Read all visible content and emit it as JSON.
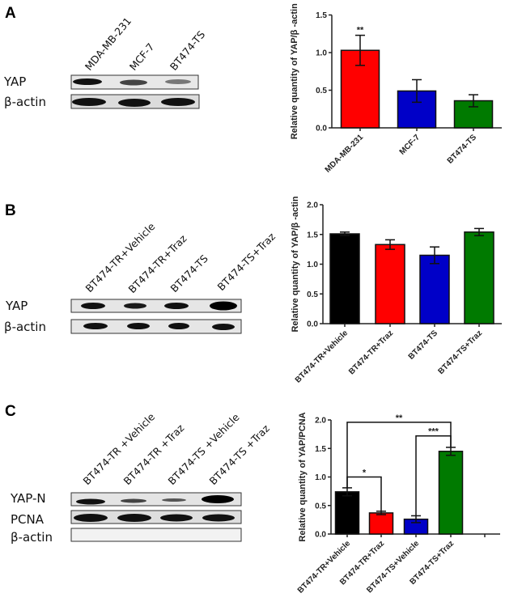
{
  "panels": [
    "A",
    "B",
    "C"
  ],
  "blots": [
    {
      "lanes": [
        "MDA-MB-231",
        "MCF-7",
        "BT474-TS"
      ],
      "rows": [
        "YAP",
        "β-actin"
      ]
    },
    {
      "lanes": [
        "BT474-TR+Vehicle",
        "BT474-TR+Traz",
        "BT474-TS",
        "BT474-TS+Traz"
      ],
      "rows": [
        "YAP",
        "β-actin"
      ]
    },
    {
      "lanes": [
        "BT474-TR +Vehicle",
        "BT474-TR +Traz",
        "BT474-TS +Vehicle",
        "BT474-TS +Traz"
      ],
      "rows": [
        "YAP-N",
        "PCNA",
        "β-actin"
      ]
    }
  ],
  "chart_data": [
    {
      "type": "bar",
      "title": "",
      "xlabel": "",
      "ylabel": "Relative quantity of YAP/β -actin",
      "ylim": [
        0,
        1.5
      ],
      "yticks": [
        "0.0",
        "0.5",
        "1.0",
        "1.5"
      ],
      "categories": [
        "MDA-MB-231",
        "MCF-7",
        "BT474-TS"
      ],
      "values": [
        1.03,
        0.49,
        0.36
      ],
      "errors": [
        0.2,
        0.15,
        0.08
      ],
      "colors": [
        "#ff0000",
        "#0000c8",
        "#007a00"
      ],
      "annotations": [
        {
          "bar": 0,
          "text": "**"
        }
      ],
      "brackets": []
    },
    {
      "type": "bar",
      "title": "",
      "xlabel": "",
      "ylabel": "Relative quantity of YAP/β -actin",
      "ylim": [
        0,
        2.0
      ],
      "yticks": [
        "0.0",
        "0.5",
        "1.0",
        "1.5",
        "2.0"
      ],
      "categories": [
        "BT474-TR+Vehicle",
        "BT474-TR+Traz",
        "BT474-TS",
        "BT474-TS+Traz"
      ],
      "values": [
        1.51,
        1.33,
        1.15,
        1.54
      ],
      "errors": [
        0.03,
        0.08,
        0.14,
        0.06
      ],
      "colors": [
        "#000000",
        "#ff0000",
        "#0000c8",
        "#007a00"
      ],
      "annotations": [],
      "brackets": []
    },
    {
      "type": "bar",
      "title": "",
      "xlabel": "",
      "ylabel": "Relative quantity of YAP/PCNA",
      "ylim": [
        0,
        2.0
      ],
      "yticks": [
        "0.0",
        "0.5",
        "1.0",
        "1.5",
        "2.0"
      ],
      "categories": [
        "BT474-TR+Vehicle",
        "BT474-TR+Traz",
        "BT474-TS+Vehicle",
        "BT474-TS+Traz"
      ],
      "values": [
        0.74,
        0.37,
        0.26,
        1.45
      ],
      "errors": [
        0.07,
        0.03,
        0.06,
        0.07
      ],
      "colors": [
        "#000000",
        "#ff0000",
        "#0000c8",
        "#007a00"
      ],
      "annotations": [],
      "brackets": [
        {
          "from": 0,
          "to": 1,
          "level": 1.0,
          "text": "*"
        },
        {
          "from": 0,
          "to": 3,
          "level": 1.96,
          "text": "**"
        },
        {
          "from": 2,
          "to": 3,
          "level": 1.72,
          "text": "***"
        }
      ]
    }
  ]
}
